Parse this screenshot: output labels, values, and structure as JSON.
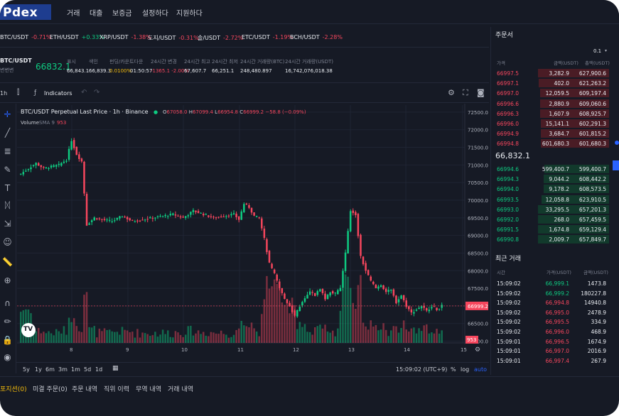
{
  "brand": {
    "logo": "Pdex"
  },
  "nav": [
    "거래",
    "대출",
    "보증금",
    "설정하다",
    "지원하다"
  ],
  "tickers": [
    {
      "pair": "BTC/USDT",
      "change": "-0.71%",
      "up": false
    },
    {
      "pair": "ETH/USDT",
      "change": "+0.33%",
      "up": true
    },
    {
      "pair": "XRP/USDT",
      "change": "-1.38%",
      "up": false
    },
    {
      "pair": "도지/USDT",
      "change": "-0.31%",
      "up": false
    },
    {
      "pair": "솔/USDT",
      "change": "-2.72%",
      "up": false
    },
    {
      "pair": "ETC/USDT",
      "change": "-1.19%",
      "up": false
    },
    {
      "pair": "BCH/USDT",
      "change": "-2.28%",
      "up": false
    }
  ],
  "market": {
    "pair": "BTC/USDT",
    "subtitle": "변변변",
    "price": "66832.1",
    "stats": [
      {
        "label": "표시",
        "value": "66,843.1",
        "color": "#e9ecf1"
      },
      {
        "label": "색인",
        "value": "66,839.3",
        "color": "#e9ecf1"
      },
      {
        "label": "펀딩/카운트다운",
        "value": "0.0100%",
        "value2": "01:50:57",
        "color": "#f0b90b"
      },
      {
        "label": "24시간 변경",
        "value": "-1365.1 -2.00%",
        "color": "#f6465d"
      },
      {
        "label": "24시간 최고",
        "value": "67,607.7",
        "color": "#e9ecf1"
      },
      {
        "label": "24시간 최저",
        "value": "66,251.1",
        "color": "#e9ecf1"
      },
      {
        "label": "24시간 거래량(BTC)",
        "value": "248,480.897",
        "color": "#e9ecf1"
      },
      {
        "label": "24시간 거래량(USDT)",
        "value": "16,742,076,018.38",
        "color": "#e9ecf1"
      }
    ]
  },
  "toolbar": {
    "interval": "1h",
    "indicators": "Indicators"
  },
  "chart_header": {
    "title": "BTC/USDT Perpetual Last Price · 1h · Binance",
    "o_label": "O",
    "o": "67058.0",
    "h_label": "H",
    "h": "67099.4",
    "l_label": "L",
    "l": "66954.8",
    "c_label": "C",
    "c": "66999.2",
    "chg": "−58.8 (−0.09%)",
    "volume_label": "Volume",
    "volume_ind": "SMA 9",
    "volume_val": "953"
  },
  "timeframes": {
    "list": [
      "5y",
      "1y",
      "6m",
      "3m",
      "1m",
      "5d",
      "1d"
    ],
    "clock": "15:09:02 (UTC+9)",
    "pct": "%",
    "log": "log",
    "auto": "auto"
  },
  "bottom_tabs": [
    "포지션(0)",
    "미결 주문(0)",
    "주문 내역",
    "직위 이력",
    "무역 내역",
    "거래 내역"
  ],
  "chart_data": {
    "type": "candlestick",
    "y_ticks": [
      "72500.0",
      "72000.0",
      "71500.0",
      "71000.0",
      "70500.0",
      "70000.0",
      "69500.0",
      "69000.0",
      "68500.0",
      "68000.0",
      "67500.0",
      "67000.0",
      "66500.0",
      "66000.0"
    ],
    "x_ticks": [
      "8",
      "9",
      "10",
      "11",
      "12",
      "13",
      "14",
      "15"
    ],
    "ylim": [
      65950,
      72700
    ],
    "last_price": "66999.2",
    "last_price_value": 66999.2,
    "volume_last": "953",
    "anchors": [
      [
        0,
        70750
      ],
      [
        3,
        70900
      ],
      [
        6,
        71050
      ],
      [
        9,
        70900
      ],
      [
        12,
        70950
      ],
      [
        15,
        71000
      ],
      [
        18,
        71150
      ],
      [
        20,
        71700
      ],
      [
        22,
        71300
      ],
      [
        24,
        71100
      ],
      [
        26,
        69300
      ],
      [
        29,
        69500
      ],
      [
        32,
        69450
      ],
      [
        36,
        69400
      ],
      [
        40,
        69550
      ],
      [
        44,
        69400
      ],
      [
        48,
        69450
      ],
      [
        52,
        69500
      ],
      [
        56,
        69550
      ],
      [
        60,
        69600
      ],
      [
        64,
        69500
      ],
      [
        68,
        69700
      ],
      [
        72,
        69600
      ],
      [
        76,
        69500
      ],
      [
        80,
        69550
      ],
      [
        84,
        69600
      ],
      [
        86,
        69450
      ],
      [
        88,
        69900
      ],
      [
        90,
        69800
      ],
      [
        92,
        69550
      ],
      [
        94,
        69500
      ],
      [
        96,
        68900
      ],
      [
        98,
        68200
      ],
      [
        100,
        67900
      ],
      [
        102,
        67500
      ],
      [
        104,
        67200
      ],
      [
        106,
        67000
      ],
      [
        108,
        66700
      ],
      [
        110,
        67000
      ],
      [
        112,
        67200
      ],
      [
        114,
        67400
      ],
      [
        116,
        67300
      ],
      [
        118,
        67500
      ],
      [
        120,
        67200
      ],
      [
        122,
        67400
      ],
      [
        124,
        67350
      ],
      [
        126,
        67500
      ],
      [
        128,
        68500
      ],
      [
        130,
        69700
      ],
      [
        132,
        69600
      ],
      [
        134,
        68400
      ],
      [
        136,
        68000
      ],
      [
        138,
        67700
      ],
      [
        140,
        67500
      ],
      [
        142,
        67600
      ],
      [
        144,
        67400
      ],
      [
        146,
        67450
      ],
      [
        148,
        67100
      ],
      [
        150,
        67300
      ],
      [
        152,
        67000
      ],
      [
        154,
        66800
      ],
      [
        156,
        66900
      ],
      [
        158,
        67000
      ],
      [
        160,
        66850
      ],
      [
        162,
        67000
      ],
      [
        164,
        66900
      ],
      [
        166,
        67000
      ]
    ]
  },
  "orderbook": {
    "title": "주문서",
    "precision": "0.1",
    "headers": [
      "가격",
      "금액(USDT)",
      "총액(USDT)"
    ],
    "asks": [
      [
        "66997.5",
        "3,282.9",
        "627,900.6"
      ],
      [
        "66997.1",
        "402.0",
        "621,263.2"
      ],
      [
        "66997.0",
        "12,059.5",
        "609,197.4"
      ],
      [
        "66996.6",
        "2,880.9",
        "609,060.6"
      ],
      [
        "66996.3",
        "1,607.9",
        "608,925.7"
      ],
      [
        "66996.0",
        "15,141.1",
        "602,291.3"
      ],
      [
        "66994.9",
        "3,684.7",
        "601,815.2"
      ],
      [
        "66994.8",
        "601,680.3",
        "601,680.3"
      ]
    ],
    "mid": "66,832.1",
    "bids": [
      [
        "66994.6",
        "599,400.7",
        "599,400.7"
      ],
      [
        "66994.3",
        "9,044.2",
        "608,442.2"
      ],
      [
        "66994.0",
        "9,178.2",
        "608,573.5"
      ],
      [
        "66993.5",
        "12,058.8",
        "623,910.5"
      ],
      [
        "66993.0",
        "33,295.5",
        "657,201.3"
      ],
      [
        "66992.0",
        "268.0",
        "657,459.5"
      ],
      [
        "66991.5",
        "1,674.8",
        "659,129.4"
      ],
      [
        "66990.8",
        "2,009.7",
        "657,849.7"
      ]
    ]
  },
  "trades": {
    "title": "최근 거래",
    "headers": [
      "시간",
      "가격(USDT)",
      "금액(USDT)"
    ],
    "rows": [
      [
        "15:09:02",
        "66,999.1",
        "1473.8",
        true
      ],
      [
        "15:09:02",
        "66,999.2",
        "180227.8",
        true
      ],
      [
        "15:09:02",
        "66,994.8",
        "14940.8",
        false
      ],
      [
        "15:09:02",
        "66,995.0",
        "2478.9",
        false
      ],
      [
        "15:09:02",
        "66,995.5",
        "334.9",
        false
      ],
      [
        "15:09:02",
        "66,996.0",
        "468.9",
        false
      ],
      [
        "15:09:01",
        "66,996.5",
        "1674.9",
        false
      ],
      [
        "15:09:01",
        "66,997.0",
        "2016.9",
        false
      ],
      [
        "15:09:01",
        "66,997.4",
        "267.9",
        false
      ]
    ]
  },
  "colors": {
    "up": "#0ecb81",
    "down": "#f6465d",
    "bg": "#161a25",
    "grid": "#232838"
  }
}
